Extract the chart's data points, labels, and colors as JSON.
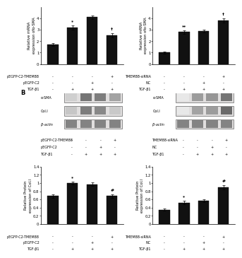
{
  "left_bar1": {
    "values": [
      1.7,
      3.2,
      4.1,
      2.5
    ],
    "errors": [
      0.12,
      0.18,
      0.15,
      0.2
    ],
    "ylabel": "Relative mRNA\nexpression ofα-SMA",
    "ylim": [
      0,
      5
    ],
    "yticks": [
      0,
      1,
      2,
      3,
      4
    ],
    "stars": [
      "",
      "*",
      "",
      "†"
    ],
    "labels": [
      "pEGFP-C2-TMEM88",
      "pEGFP-C2",
      "TGF-β1"
    ],
    "signs": [
      [
        "-",
        "-",
        "-",
        "+"
      ],
      [
        "-",
        "-",
        "+",
        "-"
      ],
      [
        "-",
        "+",
        "+",
        "+"
      ]
    ]
  },
  "right_bar1": {
    "values": [
      1.0,
      2.8,
      2.9,
      3.8
    ],
    "errors": [
      0.08,
      0.15,
      0.12,
      0.2
    ],
    "ylabel": "Relative mRNA\nexpression ofα-SMA",
    "ylim": [
      0,
      5
    ],
    "yticks": [
      0,
      1,
      2,
      3,
      4
    ],
    "stars": [
      "",
      "**",
      "",
      "†"
    ],
    "labels": [
      "TMEM88-siRNA",
      "NC",
      "TGF-β1"
    ],
    "signs": [
      [
        "-",
        "-",
        "-",
        "+"
      ],
      [
        "-",
        "-",
        "+",
        "-"
      ],
      [
        "-",
        "+",
        "+",
        "+"
      ]
    ]
  },
  "wb_left": {
    "bands": [
      "α-SMA",
      "Col.I",
      "β-actin"
    ],
    "labels": [
      "pEGFP-C2-TMEM88",
      "pEGFP-C2",
      "TGF-β1"
    ],
    "signs": [
      [
        "-",
        "-",
        "-",
        "+"
      ],
      [
        "-",
        "-",
        "+",
        "-"
      ],
      [
        "-",
        "+",
        "+",
        "+"
      ]
    ],
    "intensities": {
      "α-SMA": [
        0.25,
        0.72,
        0.68,
        0.48
      ],
      "Col.I": [
        0.3,
        0.68,
        0.62,
        0.28
      ],
      "β-actin": [
        0.65,
        0.65,
        0.65,
        0.65
      ]
    }
  },
  "wb_right": {
    "bands": [
      "α-SMA",
      "Col.I",
      "β-actin"
    ],
    "labels": [
      "TMEM88-siRNA",
      "NC",
      "TGF-β1"
    ],
    "signs": [
      [
        "-",
        "-",
        "-",
        "+"
      ],
      [
        "-",
        "-",
        "+",
        "-"
      ],
      [
        "-",
        "+",
        "+",
        "+"
      ]
    ],
    "intensities": {
      "α-SMA": [
        0.12,
        0.52,
        0.55,
        0.72
      ],
      "Col.I": [
        0.12,
        0.48,
        0.52,
        0.78
      ],
      "β-actin": [
        0.65,
        0.65,
        0.65,
        0.65
      ]
    }
  },
  "left_bar2": {
    "values": [
      0.68,
      1.0,
      0.97,
      0.68
    ],
    "errors": [
      0.04,
      0.04,
      0.04,
      0.04
    ],
    "ylabel": "Relative Protein\nexpression of Col.I",
    "ylim": [
      0.0,
      1.4
    ],
    "yticks": [
      0.0,
      0.2,
      0.4,
      0.6,
      0.8,
      1.0,
      1.2,
      1.4
    ],
    "stars": [
      "",
      "*",
      "",
      "#"
    ],
    "labels": [
      "pEGFP-C2-TMEM88",
      "pEGFP-C2",
      "TGF-β1"
    ],
    "signs": [
      [
        "-",
        "-",
        "-",
        "+"
      ],
      [
        "-",
        "-",
        "+",
        "-"
      ],
      [
        "-",
        "+",
        "+",
        "+"
      ]
    ]
  },
  "right_bar2": {
    "values": [
      0.35,
      0.52,
      0.57,
      0.9
    ],
    "errors": [
      0.03,
      0.04,
      0.04,
      0.05
    ],
    "ylabel": "Relative Protein\nexpression of Col.I",
    "ylim": [
      0.0,
      1.4
    ],
    "yticks": [
      0.0,
      0.2,
      0.4,
      0.6,
      0.8,
      1.0,
      1.2,
      1.4
    ],
    "stars": [
      "",
      "*",
      "",
      "#"
    ],
    "labels": [
      "TMEM88-siRNA",
      "NC",
      "TGF-β1"
    ],
    "signs": [
      [
        "-",
        "-",
        "-",
        "+"
      ],
      [
        "-",
        "-",
        "+",
        "-"
      ],
      [
        "-",
        "+",
        "+",
        "+"
      ]
    ]
  },
  "bar_color": "#111111",
  "wb_bg": "#c8c8c8",
  "wb_band_light": "#e0dede",
  "wb_frame_color": "#888888"
}
